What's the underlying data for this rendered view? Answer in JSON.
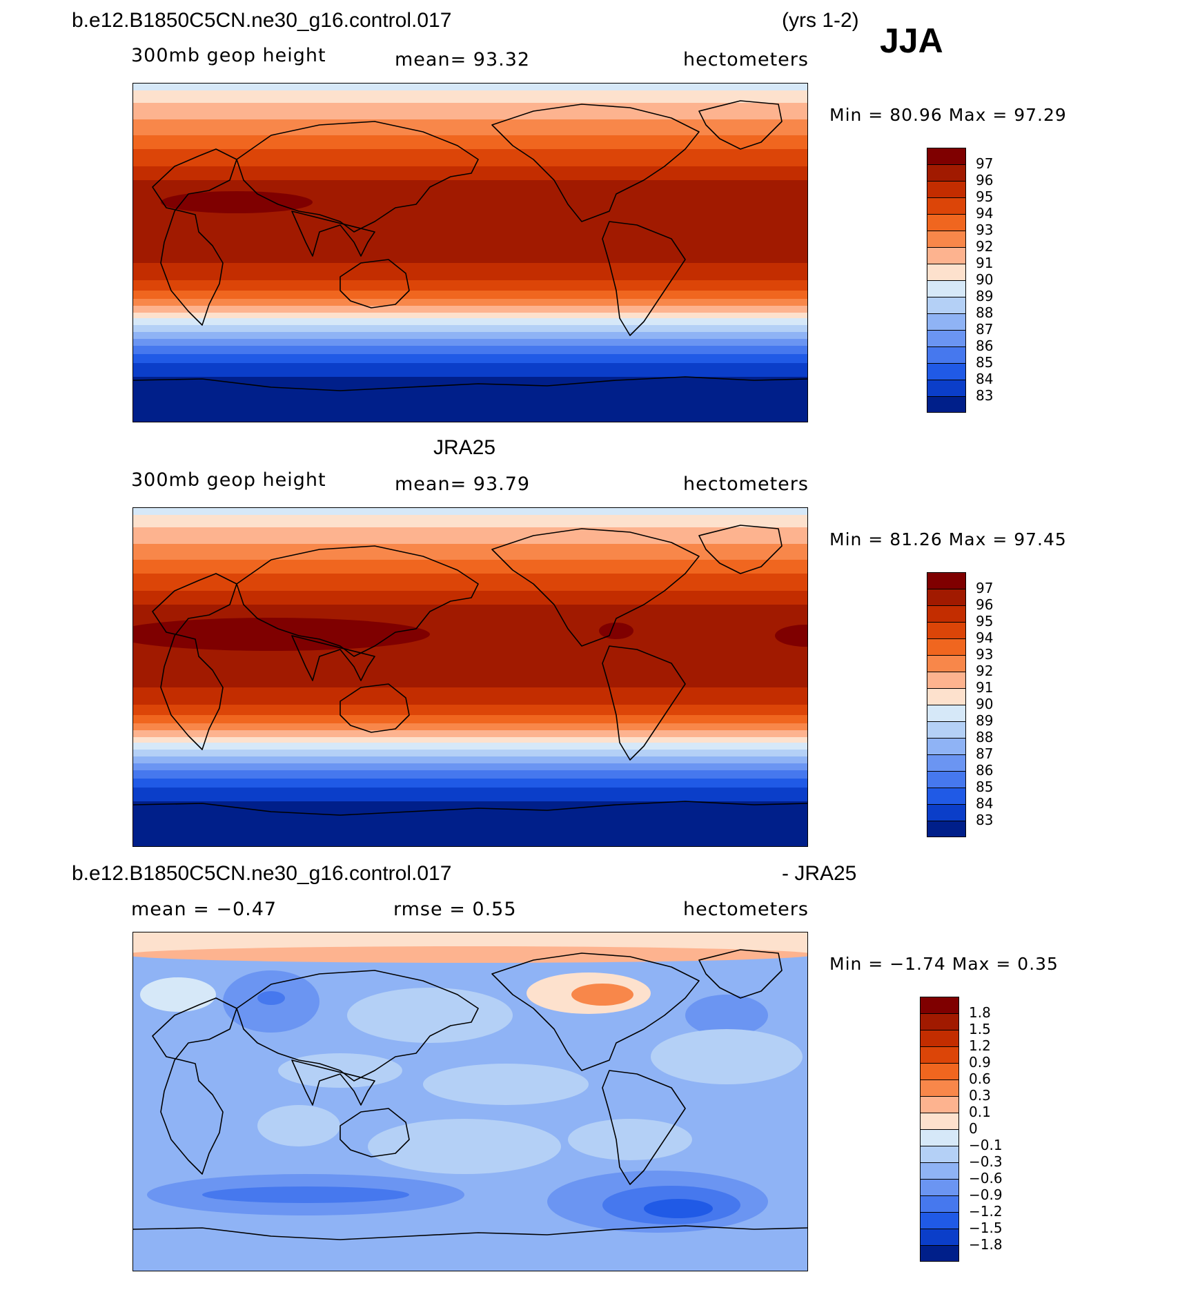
{
  "header": {
    "case_name": "b.e12.B1850C5CN.ne30_g16.control.017",
    "years": "(yrs 1-2)",
    "season": "JJA"
  },
  "panels": [
    {
      "id": "model",
      "variable": "300mb geop height",
      "stat1": "mean=   93.32",
      "stat2": "",
      "units": "hectometers",
      "minmax": "Min =   80.96 Max =   97.29",
      "kind": "abs",
      "colorbar": {
        "labels": [
          "97",
          "96",
          "95",
          "94",
          "93",
          "92",
          "91",
          "90",
          "89",
          "88",
          "87",
          "86",
          "85",
          "84",
          "83"
        ],
        "colors": [
          "#7f0000",
          "#a11a00",
          "#c32d00",
          "#dc4508",
          "#f0661f",
          "#f8874a",
          "#fdb38f",
          "#fde1cd",
          "#d6e8f8",
          "#b4d0f6",
          "#8fb3f5",
          "#6b95f2",
          "#4678ee",
          "#205ae6",
          "#0b3ec9",
          "#001f8a"
        ]
      }
    },
    {
      "id": "obs",
      "title": "JRA25",
      "variable": "300mb geop height",
      "stat1": "mean=   93.79",
      "stat2": "",
      "units": "hectometers",
      "minmax": "Min =   81.26 Max =   97.45",
      "kind": "abs",
      "colorbar": {
        "labels": [
          "97",
          "96",
          "95",
          "94",
          "93",
          "92",
          "91",
          "90",
          "89",
          "88",
          "87",
          "86",
          "85",
          "84",
          "83"
        ],
        "colors": [
          "#7f0000",
          "#a11a00",
          "#c32d00",
          "#dc4508",
          "#f0661f",
          "#f8874a",
          "#fdb38f",
          "#fde1cd",
          "#d6e8f8",
          "#b4d0f6",
          "#8fb3f5",
          "#6b95f2",
          "#4678ee",
          "#205ae6",
          "#0b3ec9",
          "#001f8a"
        ]
      }
    },
    {
      "id": "diff",
      "title_left": "b.e12.B1850C5CN.ne30_g16.control.017",
      "title_right": "- JRA25",
      "stat1": "mean =   −0.47",
      "stat2": "rmse =    0.55",
      "units": "hectometers",
      "minmax": "Min =   −1.74 Max =    0.35",
      "kind": "diff",
      "colorbar": {
        "labels": [
          "1.8",
          "1.5",
          "1.2",
          "0.9",
          "0.6",
          "0.3",
          "0.1",
          "0",
          "−0.1",
          "−0.3",
          "−0.6",
          "−0.9",
          "−1.2",
          "−1.5",
          "−1.8"
        ],
        "colors": [
          "#7f0000",
          "#a11a00",
          "#c32d00",
          "#dc4508",
          "#f0661f",
          "#f8874a",
          "#fdb38f",
          "#fde1cd",
          "#d6e8f8",
          "#b4d0f6",
          "#8fb3f5",
          "#6b95f2",
          "#4678ee",
          "#205ae6",
          "#0b3ec9",
          "#001f8a"
        ]
      }
    }
  ]
}
